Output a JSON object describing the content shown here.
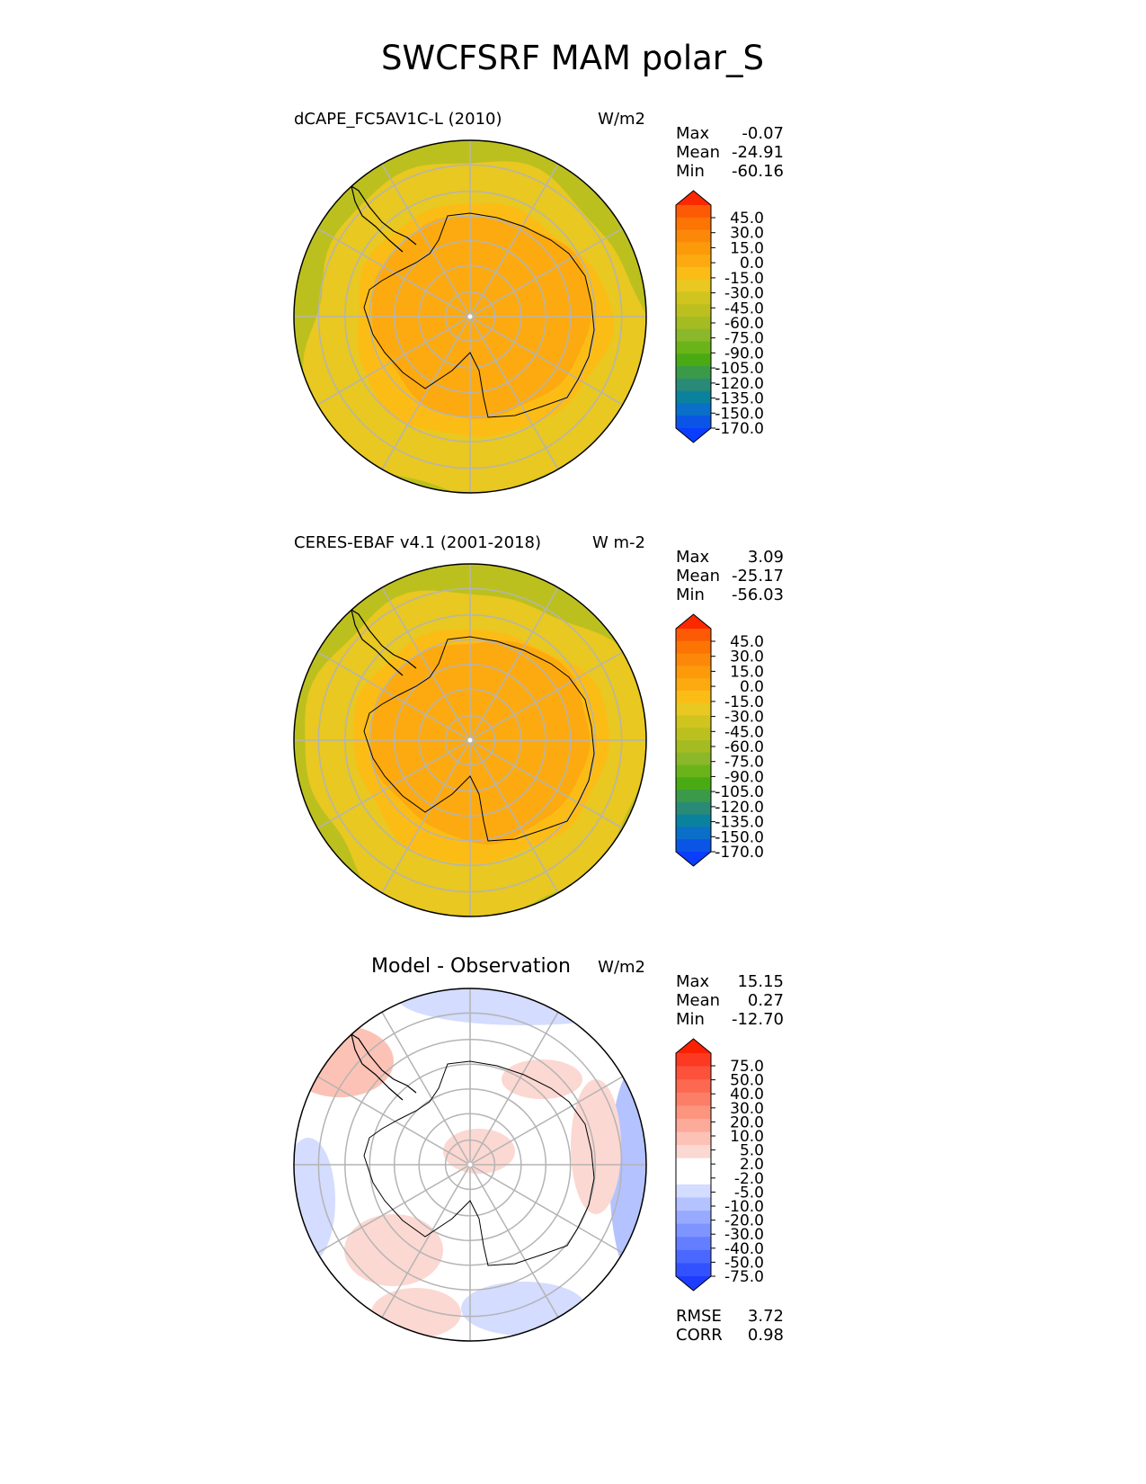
{
  "figure_title": "SWCFSRF MAM polar_S",
  "palettes": {
    "absolute": [
      "#0a3dff",
      "#0a55e6",
      "#0a6fc8",
      "#0a829e",
      "#2a8a78",
      "#3a9a4a",
      "#4aaa14",
      "#6ab41a",
      "#8ab82a",
      "#a4bc22",
      "#bcc01e",
      "#d0c41e",
      "#e8c821",
      "#fcbc16",
      "#fcaa10",
      "#fc9a0a",
      "#fc880a",
      "#fc7404",
      "#fc5a04",
      "#fc2800"
    ],
    "difference": [
      "#1e3cff",
      "#3252ff",
      "#4a68ff",
      "#647eff",
      "#7e94ff",
      "#98aaff",
      "#b4c2ff",
      "#d4dcff",
      "#ffffff",
      "#ffffff",
      "#fcd8d2",
      "#fcc2b6",
      "#fcaa9a",
      "#fc947e",
      "#fc7e66",
      "#fc6850",
      "#fc523c",
      "#fc3a24",
      "#fc2000"
    ]
  },
  "panels": [
    {
      "id": "test",
      "title": "dCAPE_FC5AV1C-L (2010)",
      "units": "W/m2",
      "stats": [
        {
          "label": "Max",
          "value": "-0.07"
        },
        {
          "label": "Mean",
          "value": "-24.91"
        },
        {
          "label": "Min",
          "value": "-60.16"
        }
      ],
      "colorbar_ticks": [
        "45.0",
        "30.0",
        "15.0",
        "0.0",
        "-15.0",
        "-30.0",
        "-45.0",
        "-60.0",
        "-75.0",
        "-90.0",
        "-105.0",
        "-120.0",
        "-135.0",
        "-150.0",
        "-170.0"
      ],
      "colors": {
        "ocean_outer": "#bcc01e",
        "ocean": "#e8c821",
        "shelf": "#fcbc16",
        "land": "#fcaa10"
      }
    },
    {
      "id": "ref",
      "title": "CERES-EBAF v4.1 (2001-2018)",
      "units": "W m-2",
      "stats": [
        {
          "label": "Max",
          "value": "3.09"
        },
        {
          "label": "Mean",
          "value": "-25.17"
        },
        {
          "label": "Min",
          "value": "-56.03"
        }
      ],
      "colorbar_ticks": [
        "45.0",
        "30.0",
        "15.0",
        "0.0",
        "-15.0",
        "-30.0",
        "-45.0",
        "-60.0",
        "-75.0",
        "-90.0",
        "-105.0",
        "-120.0",
        "-135.0",
        "-150.0",
        "-170.0"
      ],
      "colors": {
        "ocean_outer": "#bcc01e",
        "ocean": "#e8c821",
        "shelf": "#fcbc16",
        "land": "#fcaa10"
      }
    },
    {
      "id": "diff",
      "title": "Model - Observation",
      "units": "W/m2",
      "stats": [
        {
          "label": "Max",
          "value": "15.15"
        },
        {
          "label": "Mean",
          "value": "0.27"
        },
        {
          "label": "Min",
          "value": "-12.70"
        }
      ],
      "colorbar_ticks": [
        "75.0",
        "50.0",
        "40.0",
        "30.0",
        "20.0",
        "10.0",
        "5.0",
        "2.0",
        "-2.0",
        "-5.0",
        "-10.0",
        "-20.0",
        "-30.0",
        "-40.0",
        "-50.0",
        "-75.0"
      ],
      "extra_stats": [
        {
          "label": "RMSE",
          "value": "3.72"
        },
        {
          "label": "CORR",
          "value": "0.98"
        }
      ],
      "colors": {
        "neutral": "#ffffff",
        "pos": "#fcd8d2",
        "pos2": "#fcc2b6",
        "neg": "#d4dcff",
        "neg2": "#b4c2ff",
        "coast_hi": "#3050c0"
      }
    }
  ]
}
